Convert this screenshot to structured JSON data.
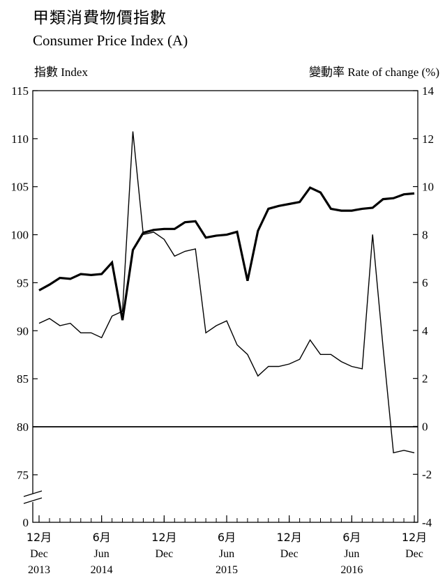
{
  "chart_data": {
    "type": "line",
    "title": "甲類消費物價指數",
    "subtitle": "Consumer Price Index (A)",
    "ylabel_left": {
      "zh": "指數",
      "en": "Index"
    },
    "ylabel_right": {
      "zh": "變動率",
      "en": "Rate of change (%)"
    },
    "y_left": {
      "lim": [
        70,
        115
      ],
      "ticks": [
        75,
        80,
        85,
        90,
        95,
        100,
        105,
        110,
        115
      ],
      "break_label": "0",
      "broken_axis": true
    },
    "y_right": {
      "lim": [
        -4,
        14
      ],
      "ticks": [
        -4,
        -2,
        0,
        2,
        4,
        6,
        8,
        10,
        12,
        14
      ]
    },
    "x_ticks": [
      {
        "index": 0,
        "month": "12月",
        "abbr": "Dec",
        "year": "2013"
      },
      {
        "index": 6,
        "month": "6月",
        "abbr": "Jun",
        "year": "2014"
      },
      {
        "index": 12,
        "month": "12月",
        "abbr": "Dec",
        "year": ""
      },
      {
        "index": 18,
        "month": "6月",
        "abbr": "Jun",
        "year": "2015"
      },
      {
        "index": 24,
        "month": "12月",
        "abbr": "Dec",
        "year": ""
      },
      {
        "index": 30,
        "month": "6月",
        "abbr": "Jun",
        "year": "2016"
      },
      {
        "index": 36,
        "month": "12月",
        "abbr": "Dec",
        "year": ""
      }
    ],
    "series": [
      {
        "axis": "left",
        "values": [
          94.2,
          94.8,
          95.5,
          95.4,
          95.9,
          95.8,
          95.9,
          97.1,
          91.1,
          98.4,
          100.2,
          100.5,
          100.6,
          100.6,
          101.3,
          101.4,
          99.7,
          99.9,
          100.0,
          100.3,
          95.2,
          100.4,
          102.7,
          103.0,
          103.2,
          103.4,
          104.9,
          104.4,
          102.7,
          102.5,
          102.5,
          102.7,
          102.8,
          103.7,
          103.8,
          104.2,
          104.3
        ]
      },
      {
        "axis": "right",
        "values": [
          4.3,
          4.5,
          4.2,
          4.3,
          3.9,
          3.9,
          3.7,
          4.6,
          4.8,
          12.3,
          8.0,
          8.1,
          7.8,
          7.1,
          7.3,
          7.4,
          3.9,
          4.2,
          4.4,
          3.4,
          3.0,
          2.1,
          2.5,
          2.5,
          2.6,
          2.8,
          3.6,
          3.0,
          3.0,
          2.7,
          2.5,
          2.4,
          8.0,
          3.3,
          -1.1,
          -1.0,
          -1.1
        ]
      }
    ],
    "colors": {
      "line": "#000000"
    }
  }
}
